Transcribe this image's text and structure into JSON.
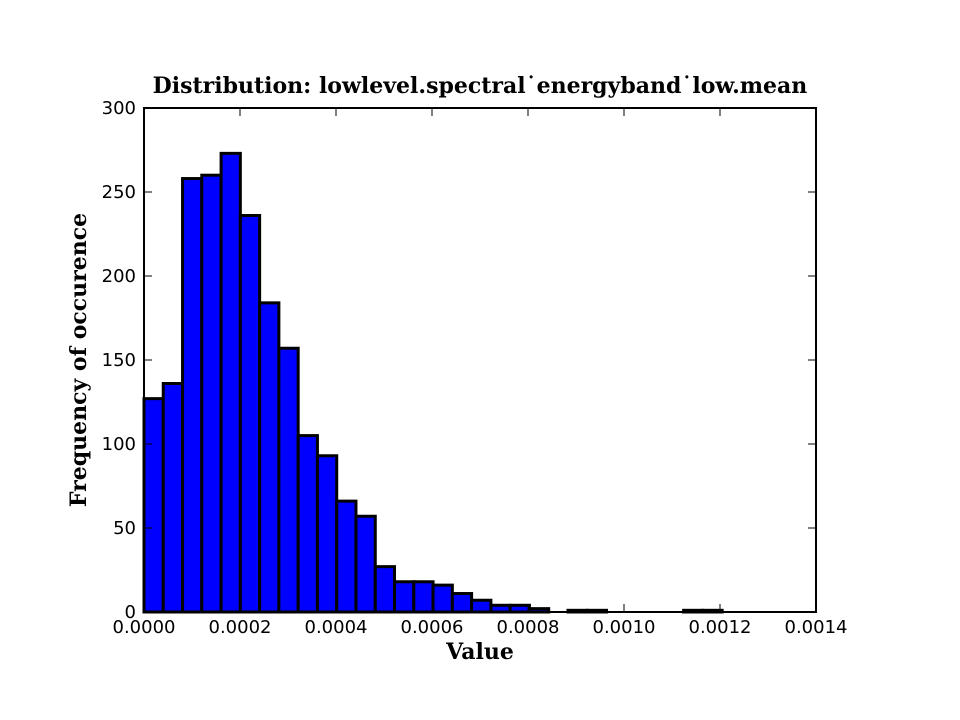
{
  "chart_data": {
    "type": "bar",
    "title": "Distribution: lowlevel.spectral˙energyband˙low.mean",
    "xlabel": "Value",
    "ylabel": "Frequency of occurence",
    "xlim": [
      0,
      0.0014
    ],
    "ylim": [
      0,
      300
    ],
    "grid": false,
    "bar_color": "#0000ff",
    "edge_color": "#000000",
    "x_ticks": [
      "0.0000",
      "0.0002",
      "0.0004",
      "0.0006",
      "0.0008",
      "0.0010",
      "0.0012",
      "0.0014"
    ],
    "y_ticks": [
      "0",
      "50",
      "100",
      "150",
      "200",
      "250",
      "300"
    ],
    "bins": [
      {
        "x0": 0.0,
        "x1": 4.01e-05,
        "count": 127
      },
      {
        "x0": 4.01e-05,
        "x1": 8.03e-05,
        "count": 136
      },
      {
        "x0": 8.03e-05,
        "x1": 0.0001204,
        "count": 258
      },
      {
        "x0": 0.0001204,
        "x1": 0.0001606,
        "count": 260
      },
      {
        "x0": 0.0001606,
        "x1": 0.0002007,
        "count": 273
      },
      {
        "x0": 0.0002007,
        "x1": 0.0002409,
        "count": 236
      },
      {
        "x0": 0.0002409,
        "x1": 0.000281,
        "count": 184
      },
      {
        "x0": 0.000281,
        "x1": 0.0003212,
        "count": 157
      },
      {
        "x0": 0.0003212,
        "x1": 0.0003613,
        "count": 105
      },
      {
        "x0": 0.0003613,
        "x1": 0.0004015,
        "count": 93
      },
      {
        "x0": 0.0004015,
        "x1": 0.0004416,
        "count": 66
      },
      {
        "x0": 0.0004416,
        "x1": 0.0004818,
        "count": 57
      },
      {
        "x0": 0.0004818,
        "x1": 0.0005219,
        "count": 27
      },
      {
        "x0": 0.0005219,
        "x1": 0.0005621,
        "count": 18
      },
      {
        "x0": 0.0005621,
        "x1": 0.0006022,
        "count": 18
      },
      {
        "x0": 0.0006022,
        "x1": 0.0006424,
        "count": 16
      },
      {
        "x0": 0.0006424,
        "x1": 0.0006825,
        "count": 11
      },
      {
        "x0": 0.0006825,
        "x1": 0.0007227,
        "count": 7
      },
      {
        "x0": 0.0007227,
        "x1": 0.0007628,
        "count": 4
      },
      {
        "x0": 0.0007628,
        "x1": 0.000803,
        "count": 4
      },
      {
        "x0": 0.000803,
        "x1": 0.0008431,
        "count": 2
      },
      {
        "x0": 0.0008431,
        "x1": 0.0008833,
        "count": 0
      },
      {
        "x0": 0.0008833,
        "x1": 0.0009234,
        "count": 1
      },
      {
        "x0": 0.0009234,
        "x1": 0.0009636,
        "count": 1
      },
      {
        "x0": 0.0009636,
        "x1": 0.0010037,
        "count": 0
      },
      {
        "x0": 0.0010037,
        "x1": 0.0010439,
        "count": 0
      },
      {
        "x0": 0.0010439,
        "x1": 0.001084,
        "count": 0
      },
      {
        "x0": 0.001084,
        "x1": 0.0011242,
        "count": 0
      },
      {
        "x0": 0.0011242,
        "x1": 0.0011643,
        "count": 1
      },
      {
        "x0": 0.0011643,
        "x1": 0.0012045,
        "count": 1
      },
      {
        "x0": 0.0012045,
        "x1": 0.0012446,
        "count": 0
      },
      {
        "x0": 0.0012446,
        "x1": 0.0012848,
        "count": 0
      },
      {
        "x0": 0.0012848,
        "x1": 0.0013249,
        "count": 0
      },
      {
        "x0": 0.0013249,
        "x1": 0.0013651,
        "count": 0
      },
      {
        "x0": 0.0013651,
        "x1": 0.0014052,
        "count": 0
      }
    ]
  }
}
